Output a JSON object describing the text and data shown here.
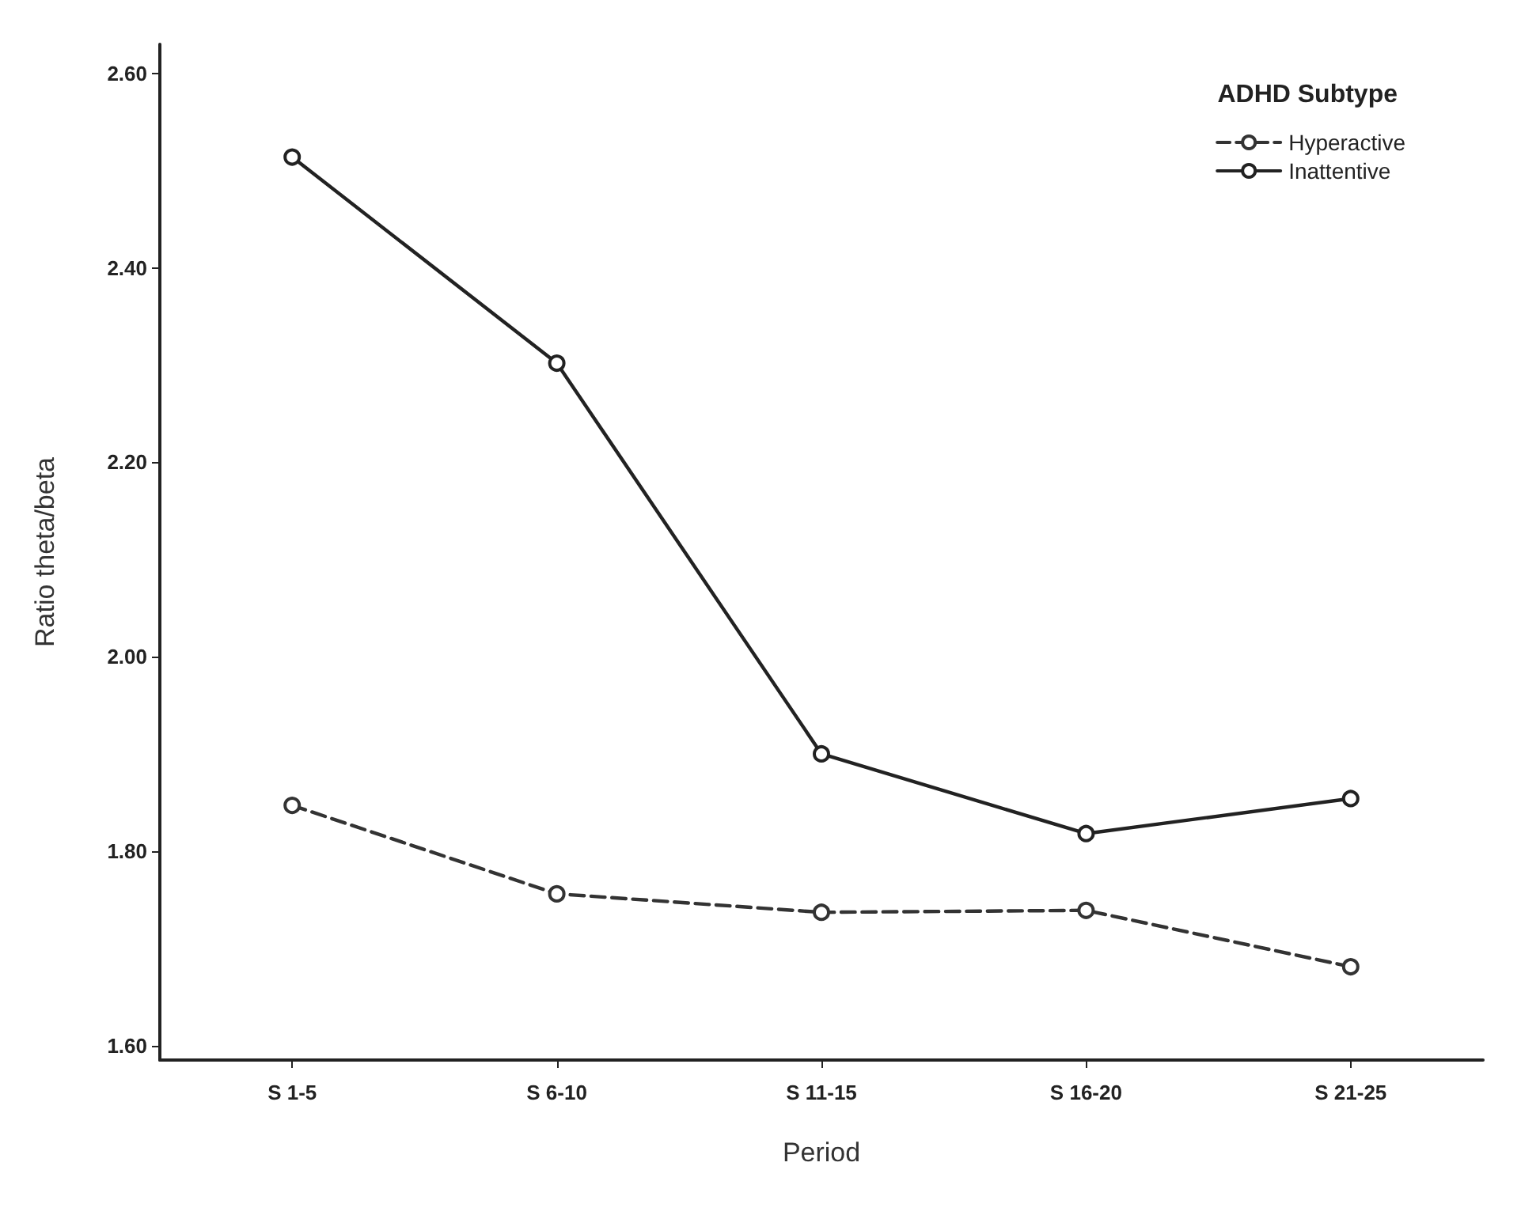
{
  "chart_data": {
    "type": "line",
    "xlabel": "Period",
    "ylabel": "Ratio theta/beta",
    "legend_title": "ADHD Subtype",
    "categories": [
      "S 1-5",
      "S 6-10",
      "S 11-15",
      "S 16-20",
      "S 21-25"
    ],
    "series": [
      {
        "name": "Hyperactive",
        "color": "#333333",
        "line_style": "dashed",
        "values": [
          1.847,
          1.756,
          1.737,
          1.739,
          1.681
        ]
      },
      {
        "name": "Inattentive",
        "color": "#222222",
        "line_style": "solid",
        "values": [
          2.514,
          2.302,
          1.9,
          1.818,
          1.854
        ]
      }
    ],
    "ylim": [
      1.585,
      2.63
    ],
    "yticks": [
      {
        "value": 1.6,
        "label": "1.60"
      },
      {
        "value": 1.8,
        "label": "1.80"
      },
      {
        "value": 2.0,
        "label": "2.00"
      },
      {
        "value": 2.2,
        "label": "2.20"
      },
      {
        "value": 2.4,
        "label": "2.40"
      },
      {
        "value": 2.6,
        "label": "2.60"
      }
    ],
    "marker": "circle",
    "grid": false,
    "legend": "top right"
  }
}
